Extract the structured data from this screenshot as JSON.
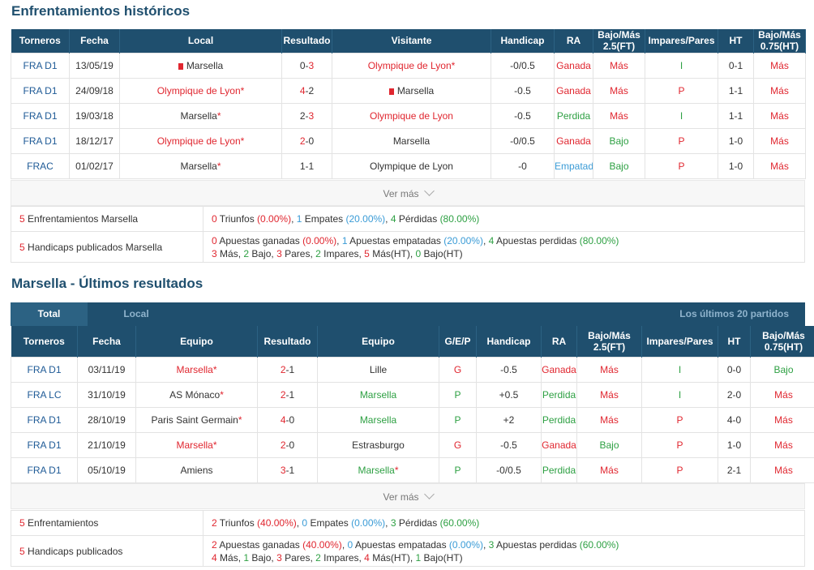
{
  "h2h": {
    "title": "Enfrentamientos históricos",
    "headers": [
      "Torneros",
      "Fecha",
      "Local",
      "Resultado",
      "Visitante",
      "Handicap",
      "RA",
      "Bajo/Más 2.5(FT)",
      "Impares/Pares",
      "HT",
      "Bajo/Más 0.75(HT)"
    ],
    "rows": [
      {
        "league": "FRA D1",
        "date": "13/05/19",
        "home": "Marsella",
        "home_star": "",
        "home_flag": true,
        "home_color": "dark",
        "score_home": "0",
        "score_sep": "-",
        "score_away": "3",
        "sh_color": "dark",
        "sa_color": "red",
        "away": "Olympique de Lyon",
        "away_star": "*",
        "away_flag": false,
        "away_color": "red",
        "handicap": "-0/0.5",
        "ra": "Ganada",
        "ra_color": "red",
        "ou": "Más",
        "ou_color": "red",
        "oe": "I",
        "oe_color": "green",
        "ht": "0-1",
        "ouht": "Más",
        "ouht_color": "red"
      },
      {
        "league": "FRA D1",
        "date": "24/09/18",
        "home": "Olympique de Lyon",
        "home_star": "*",
        "home_flag": false,
        "home_color": "red",
        "score_home": "4",
        "score_sep": "-",
        "score_away": "2",
        "sh_color": "red",
        "sa_color": "dark",
        "away": "Marsella",
        "away_star": "",
        "away_flag": true,
        "away_color": "dark",
        "handicap": "-0.5",
        "ra": "Ganada",
        "ra_color": "red",
        "ou": "Más",
        "ou_color": "red",
        "oe": "P",
        "oe_color": "red",
        "ht": "1-1",
        "ouht": "Más",
        "ouht_color": "red"
      },
      {
        "league": "FRA D1",
        "date": "19/03/18",
        "home": "Marsella",
        "home_star": "*",
        "home_flag": false,
        "home_color": "dark",
        "score_home": "2",
        "score_sep": "-",
        "score_away": "3",
        "sh_color": "dark",
        "sa_color": "red",
        "away": "Olympique de Lyon",
        "away_star": "",
        "away_flag": false,
        "away_color": "red",
        "handicap": "-0.5",
        "ra": "Perdida",
        "ra_color": "green",
        "ou": "Más",
        "ou_color": "red",
        "oe": "I",
        "oe_color": "green",
        "ht": "1-1",
        "ouht": "Más",
        "ouht_color": "red"
      },
      {
        "league": "FRA D1",
        "date": "18/12/17",
        "home": "Olympique de Lyon",
        "home_star": "*",
        "home_flag": false,
        "home_color": "red",
        "score_home": "2",
        "score_sep": "-",
        "score_away": "0",
        "sh_color": "red",
        "sa_color": "dark",
        "away": "Marsella",
        "away_star": "",
        "away_flag": false,
        "away_color": "dark",
        "handicap": "-0/0.5",
        "ra": "Ganada",
        "ra_color": "red",
        "ou": "Bajo",
        "ou_color": "green",
        "oe": "P",
        "oe_color": "red",
        "ht": "1-0",
        "ouht": "Más",
        "ouht_color": "red"
      },
      {
        "league": "FRAC",
        "date": "01/02/17",
        "home": "Marsella",
        "home_star": "*",
        "home_flag": false,
        "home_color": "dark",
        "score_home": "1",
        "score_sep": "-",
        "score_away": "1",
        "sh_color": "dark",
        "sa_color": "dark",
        "away": "Olympique de Lyon",
        "away_star": "",
        "away_flag": false,
        "away_color": "dark",
        "handicap": "-0",
        "ra": "Empatada",
        "ra_color": "lblue",
        "ou": "Bajo",
        "ou_color": "green",
        "oe": "P",
        "oe_color": "red",
        "ht": "1-0",
        "ouht": "Más",
        "ouht_color": "red"
      }
    ],
    "ver_mas": "Ver más",
    "summary": {
      "row1_label_num": "5",
      "row1_label": " Enfrentamientos Marsella",
      "r1": [
        [
          "0",
          "red",
          " Triunfos ",
          "dark"
        ],
        [
          "(0.00%)",
          "red",
          ", ",
          "dark"
        ],
        [
          "1",
          "lblue",
          " Empates ",
          "dark"
        ],
        [
          "(20.00%)",
          "lblue",
          ", ",
          "dark"
        ],
        [
          "4",
          "green",
          " Pérdidas ",
          "dark"
        ],
        [
          "(80.00%)",
          "green",
          "",
          "dark"
        ]
      ],
      "row2_label_num": "5",
      "row2_label": " Handicaps publicados Marsella",
      "r2a": [
        [
          "0",
          "red",
          " Apuestas ganadas ",
          "dark"
        ],
        [
          "(0.00%)",
          "red",
          ", ",
          "dark"
        ],
        [
          "1",
          "lblue",
          " Apuestas empatadas ",
          "dark"
        ],
        [
          "(20.00%)",
          "lblue",
          ", ",
          "dark"
        ],
        [
          "4",
          "green",
          " Apuestas perdidas ",
          "dark"
        ],
        [
          "(80.00%)",
          "green",
          "",
          "dark"
        ]
      ],
      "r2b": [
        [
          "3",
          "red",
          " Más, ",
          "dark"
        ],
        [
          "2",
          "green",
          " Bajo, ",
          "dark"
        ],
        [
          "3",
          "red",
          " Pares, ",
          "dark"
        ],
        [
          "2",
          "green",
          " Impares, ",
          "dark"
        ],
        [
          "5",
          "red",
          " Más(HT), ",
          "dark"
        ],
        [
          "0",
          "green",
          " Bajo(HT)",
          "dark"
        ]
      ]
    }
  },
  "recent": {
    "title": "Marsella - Últimos resultados",
    "tab_total": "Total",
    "tab_local": "Local",
    "tab_right": "Los últimos 20 partidos",
    "headers": [
      "Torneros",
      "Fecha",
      "Equipo",
      "Resultado",
      "Equipo",
      "G/E/P",
      "Handicap",
      "RA",
      "Bajo/Más 2.5(FT)",
      "Impares/Pares",
      "HT",
      "Bajo/Más 0.75(HT)"
    ],
    "rows": [
      {
        "league": "FRA D1",
        "date": "03/11/19",
        "home": "Marsella",
        "home_star": "*",
        "home_color": "red",
        "score_home": "2",
        "score_sep": "-",
        "score_away": "1",
        "sh_color": "red",
        "sa_color": "dark",
        "away": "Lille",
        "away_star": "",
        "away_color": "dark",
        "gep": "G",
        "gep_color": "red",
        "handicap": "-0.5",
        "ra": "Ganada",
        "ra_color": "red",
        "ou": "Más",
        "ou_color": "red",
        "oe": "I",
        "oe_color": "green",
        "ht": "0-0",
        "ouht": "Bajo",
        "ouht_color": "green"
      },
      {
        "league": "FRA LC",
        "date": "31/10/19",
        "home": "AS Mónaco",
        "home_star": "*",
        "home_color": "dark",
        "score_home": "2",
        "score_sep": "-",
        "score_away": "1",
        "sh_color": "red",
        "sa_color": "dark",
        "away": "Marsella",
        "away_star": "",
        "away_color": "green",
        "gep": "P",
        "gep_color": "green",
        "handicap": "+0.5",
        "ra": "Perdida",
        "ra_color": "green",
        "ou": "Más",
        "ou_color": "red",
        "oe": "I",
        "oe_color": "green",
        "ht": "2-0",
        "ouht": "Más",
        "ouht_color": "red"
      },
      {
        "league": "FRA D1",
        "date": "28/10/19",
        "home": "Paris Saint Germain",
        "home_star": "*",
        "home_color": "dark",
        "score_home": "4",
        "score_sep": "-",
        "score_away": "0",
        "sh_color": "red",
        "sa_color": "dark",
        "away": "Marsella",
        "away_star": "",
        "away_color": "green",
        "gep": "P",
        "gep_color": "green",
        "handicap": "+2",
        "ra": "Perdida",
        "ra_color": "green",
        "ou": "Más",
        "ou_color": "red",
        "oe": "P",
        "oe_color": "red",
        "ht": "4-0",
        "ouht": "Más",
        "ouht_color": "red"
      },
      {
        "league": "FRA D1",
        "date": "21/10/19",
        "home": "Marsella",
        "home_star": "*",
        "home_color": "red",
        "score_home": "2",
        "score_sep": "-",
        "score_away": "0",
        "sh_color": "red",
        "sa_color": "dark",
        "away": "Estrasburgo",
        "away_star": "",
        "away_color": "dark",
        "gep": "G",
        "gep_color": "red",
        "handicap": "-0.5",
        "ra": "Ganada",
        "ra_color": "red",
        "ou": "Bajo",
        "ou_color": "green",
        "oe": "P",
        "oe_color": "red",
        "ht": "1-0",
        "ouht": "Más",
        "ouht_color": "red"
      },
      {
        "league": "FRA D1",
        "date": "05/10/19",
        "home": "Amiens",
        "home_star": "",
        "home_color": "dark",
        "score_home": "3",
        "score_sep": "-",
        "score_away": "1",
        "sh_color": "red",
        "sa_color": "dark",
        "away": "Marsella",
        "away_star": "*",
        "away_color": "green",
        "gep": "P",
        "gep_color": "green",
        "handicap": "-0/0.5",
        "ra": "Perdida",
        "ra_color": "green",
        "ou": "Más",
        "ou_color": "red",
        "oe": "P",
        "oe_color": "red",
        "ht": "2-1",
        "ouht": "Más",
        "ouht_color": "red"
      }
    ],
    "ver_mas": "Ver más",
    "summary": {
      "row1_label_num": "5",
      "row1_label": " Enfrentamientos",
      "r1": [
        [
          "2",
          "red",
          " Triunfos ",
          "dark"
        ],
        [
          "(40.00%)",
          "red",
          ", ",
          "dark"
        ],
        [
          "0",
          "lblue",
          " Empates ",
          "dark"
        ],
        [
          "(0.00%)",
          "lblue",
          ", ",
          "dark"
        ],
        [
          "3",
          "green",
          " Pérdidas ",
          "dark"
        ],
        [
          "(60.00%)",
          "green",
          "",
          "dark"
        ]
      ],
      "row2_label_num": "5",
      "row2_label": " Handicaps publicados",
      "r2a": [
        [
          "2",
          "red",
          " Apuestas ganadas ",
          "dark"
        ],
        [
          "(40.00%)",
          "red",
          ", ",
          "dark"
        ],
        [
          "0",
          "lblue",
          " Apuestas empatadas ",
          "dark"
        ],
        [
          "(0.00%)",
          "lblue",
          ", ",
          "dark"
        ],
        [
          "3",
          "green",
          " Apuestas perdidas ",
          "dark"
        ],
        [
          "(60.00%)",
          "green",
          "",
          "dark"
        ]
      ],
      "r2b": [
        [
          "4",
          "red",
          " Más, ",
          "dark"
        ],
        [
          "1",
          "green",
          " Bajo, ",
          "dark"
        ],
        [
          "3",
          "red",
          " Pares, ",
          "dark"
        ],
        [
          "2",
          "green",
          " Impares, ",
          "dark"
        ],
        [
          "4",
          "red",
          " Más(HT), ",
          "dark"
        ],
        [
          "1",
          "green",
          " Bajo(HT)",
          "dark"
        ]
      ]
    }
  }
}
